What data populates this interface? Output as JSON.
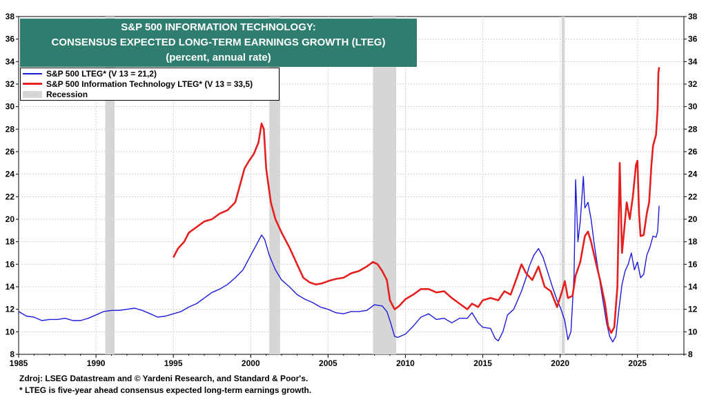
{
  "title": {
    "line1": "S&P 500 INFORMATION TECHNOLOGY:",
    "line2": "CONSENSUS EXPECTED LONG-TERM EARNINGS GROWTH (LTEG)",
    "line3": "(percent, annual rate)"
  },
  "legend": [
    {
      "label": "S&P 500 LTEG* (V 13 = 21,2)",
      "color": "#1a1adc"
    },
    {
      "label": "S&P 500 Information Technology LTEG* (V 13 = 33,5)",
      "color": "#e61e1e"
    },
    {
      "label": "Recession",
      "color": "#d6d6d6"
    }
  ],
  "footnotes": {
    "source": "Zdroj: LSEG Datastream and © Yardeni Research, and Standard & Poor's.",
    "note": "* LTEG is five-year ahead consensus expected long-term earnings growth."
  },
  "chart_data": {
    "type": "line",
    "xlim": [
      1985,
      2028
    ],
    "ylim": [
      8,
      38
    ],
    "x_ticks": [
      1985,
      1990,
      1995,
      2000,
      2005,
      2010,
      2015,
      2020,
      2025
    ],
    "y_ticks": [
      8,
      10,
      12,
      14,
      16,
      18,
      20,
      22,
      24,
      26,
      28,
      30,
      32,
      34,
      36,
      38
    ],
    "grid": true,
    "y_axis_both_sides": true,
    "recessions": [
      [
        1990.6,
        1991.2
      ],
      [
        2001.2,
        2001.9
      ],
      [
        2007.9,
        2009.4
      ],
      [
        2020.1,
        2020.3
      ]
    ],
    "series": [
      {
        "name": "S&P 500 LTEG* (V 13 = 21,2)",
        "color": "#1a1adc",
        "points": [
          [
            1985.0,
            11.8
          ],
          [
            1985.5,
            11.4
          ],
          [
            1986.0,
            11.3
          ],
          [
            1986.5,
            11.0
          ],
          [
            1987.0,
            11.1
          ],
          [
            1987.5,
            11.1
          ],
          [
            1988.0,
            11.2
          ],
          [
            1988.5,
            11.0
          ],
          [
            1989.0,
            11.0
          ],
          [
            1989.5,
            11.2
          ],
          [
            1990.0,
            11.5
          ],
          [
            1990.5,
            11.8
          ],
          [
            1991.0,
            11.9
          ],
          [
            1991.5,
            11.9
          ],
          [
            1992.0,
            12.0
          ],
          [
            1992.5,
            12.1
          ],
          [
            1993.0,
            11.9
          ],
          [
            1993.5,
            11.6
          ],
          [
            1994.0,
            11.3
          ],
          [
            1994.5,
            11.4
          ],
          [
            1995.0,
            11.6
          ],
          [
            1995.5,
            11.8
          ],
          [
            1996.0,
            12.2
          ],
          [
            1996.5,
            12.5
          ],
          [
            1997.0,
            13.0
          ],
          [
            1997.5,
            13.5
          ],
          [
            1998.0,
            13.8
          ],
          [
            1998.5,
            14.2
          ],
          [
            1999.0,
            14.8
          ],
          [
            1999.5,
            15.5
          ],
          [
            2000.0,
            16.8
          ],
          [
            2000.4,
            17.8
          ],
          [
            2000.7,
            18.6
          ],
          [
            2000.9,
            18.2
          ],
          [
            2001.2,
            16.8
          ],
          [
            2001.6,
            15.5
          ],
          [
            2002.0,
            14.6
          ],
          [
            2002.5,
            14.0
          ],
          [
            2003.0,
            13.3
          ],
          [
            2003.5,
            12.9
          ],
          [
            2004.0,
            12.6
          ],
          [
            2004.5,
            12.2
          ],
          [
            2005.0,
            12.0
          ],
          [
            2005.5,
            11.7
          ],
          [
            2006.0,
            11.6
          ],
          [
            2006.5,
            11.8
          ],
          [
            2007.0,
            11.8
          ],
          [
            2007.5,
            11.9
          ],
          [
            2008.0,
            12.4
          ],
          [
            2008.5,
            12.3
          ],
          [
            2008.8,
            11.8
          ],
          [
            2009.0,
            11.0
          ],
          [
            2009.3,
            9.6
          ],
          [
            2009.5,
            9.5
          ],
          [
            2010.0,
            9.8
          ],
          [
            2010.5,
            10.5
          ],
          [
            2011.0,
            11.3
          ],
          [
            2011.5,
            11.6
          ],
          [
            2012.0,
            11.1
          ],
          [
            2012.5,
            11.2
          ],
          [
            2013.0,
            10.8
          ],
          [
            2013.5,
            11.2
          ],
          [
            2014.0,
            11.2
          ],
          [
            2014.3,
            11.7
          ],
          [
            2014.7,
            10.8
          ],
          [
            2015.0,
            10.4
          ],
          [
            2015.5,
            10.3
          ],
          [
            2015.8,
            9.4
          ],
          [
            2016.0,
            9.2
          ],
          [
            2016.3,
            10.0
          ],
          [
            2016.6,
            11.5
          ],
          [
            2017.0,
            12.0
          ],
          [
            2017.5,
            13.6
          ],
          [
            2017.8,
            14.8
          ],
          [
            2018.0,
            15.8
          ],
          [
            2018.3,
            16.8
          ],
          [
            2018.6,
            17.4
          ],
          [
            2018.9,
            16.6
          ],
          [
            2019.2,
            15.3
          ],
          [
            2019.5,
            14.0
          ],
          [
            2019.8,
            12.8
          ],
          [
            2020.0,
            12.2
          ],
          [
            2020.3,
            11.0
          ],
          [
            2020.5,
            9.3
          ],
          [
            2020.7,
            10.0
          ],
          [
            2020.9,
            15.0
          ],
          [
            2021.0,
            23.5
          ],
          [
            2021.15,
            18.0
          ],
          [
            2021.3,
            19.8
          ],
          [
            2021.5,
            23.8
          ],
          [
            2021.6,
            21.0
          ],
          [
            2021.8,
            21.5
          ],
          [
            2022.0,
            20.0
          ],
          [
            2022.2,
            17.8
          ],
          [
            2022.4,
            16.0
          ],
          [
            2022.6,
            14.2
          ],
          [
            2022.8,
            12.5
          ],
          [
            2023.0,
            10.8
          ],
          [
            2023.2,
            9.6
          ],
          [
            2023.4,
            9.1
          ],
          [
            2023.6,
            9.6
          ],
          [
            2023.8,
            12.0
          ],
          [
            2024.0,
            14.2
          ],
          [
            2024.2,
            15.4
          ],
          [
            2024.4,
            16.0
          ],
          [
            2024.6,
            17.0
          ],
          [
            2024.8,
            15.5
          ],
          [
            2025.0,
            16.2
          ],
          [
            2025.2,
            14.8
          ],
          [
            2025.4,
            15.1
          ],
          [
            2025.6,
            16.8
          ],
          [
            2025.8,
            17.5
          ],
          [
            2026.0,
            18.5
          ],
          [
            2026.2,
            18.4
          ],
          [
            2026.3,
            18.9
          ],
          [
            2026.4,
            21.2
          ]
        ]
      },
      {
        "name": "S&P 500 Information Technology LTEG* (V 13 = 33,5)",
        "color": "#e61e1e",
        "points": [
          [
            1995.0,
            16.6
          ],
          [
            1995.3,
            17.4
          ],
          [
            1995.7,
            18.0
          ],
          [
            1996.0,
            18.8
          ],
          [
            1996.5,
            19.3
          ],
          [
            1997.0,
            19.8
          ],
          [
            1997.5,
            20.0
          ],
          [
            1998.0,
            20.5
          ],
          [
            1998.5,
            20.8
          ],
          [
            1999.0,
            21.5
          ],
          [
            1999.3,
            23.0
          ],
          [
            1999.6,
            24.5
          ],
          [
            1999.9,
            25.2
          ],
          [
            2000.2,
            25.8
          ],
          [
            2000.5,
            26.8
          ],
          [
            2000.7,
            28.5
          ],
          [
            2000.85,
            28.0
          ],
          [
            2001.0,
            24.5
          ],
          [
            2001.3,
            21.5
          ],
          [
            2001.6,
            20.0
          ],
          [
            2002.0,
            18.8
          ],
          [
            2002.5,
            17.5
          ],
          [
            2003.0,
            16.0
          ],
          [
            2003.4,
            14.8
          ],
          [
            2003.8,
            14.4
          ],
          [
            2004.2,
            14.2
          ],
          [
            2004.6,
            14.3
          ],
          [
            2005.0,
            14.5
          ],
          [
            2005.5,
            14.7
          ],
          [
            2006.0,
            14.8
          ],
          [
            2006.5,
            15.2
          ],
          [
            2007.0,
            15.4
          ],
          [
            2007.5,
            15.8
          ],
          [
            2007.9,
            16.2
          ],
          [
            2008.2,
            16.0
          ],
          [
            2008.5,
            15.4
          ],
          [
            2008.8,
            14.6
          ],
          [
            2009.0,
            12.8
          ],
          [
            2009.3,
            12.0
          ],
          [
            2009.6,
            12.3
          ],
          [
            2010.0,
            12.9
          ],
          [
            2010.5,
            13.3
          ],
          [
            2011.0,
            13.8
          ],
          [
            2011.5,
            13.8
          ],
          [
            2012.0,
            13.5
          ],
          [
            2012.5,
            13.6
          ],
          [
            2013.0,
            13.0
          ],
          [
            2013.5,
            12.5
          ],
          [
            2014.0,
            12.0
          ],
          [
            2014.3,
            12.5
          ],
          [
            2014.7,
            12.2
          ],
          [
            2015.0,
            12.8
          ],
          [
            2015.5,
            13.0
          ],
          [
            2016.0,
            12.8
          ],
          [
            2016.4,
            13.6
          ],
          [
            2016.8,
            13.3
          ],
          [
            2017.2,
            14.8
          ],
          [
            2017.5,
            16.0
          ],
          [
            2017.8,
            15.2
          ],
          [
            2018.2,
            14.6
          ],
          [
            2018.6,
            15.8
          ],
          [
            2019.0,
            14.0
          ],
          [
            2019.4,
            13.6
          ],
          [
            2019.8,
            12.2
          ],
          [
            2020.1,
            13.5
          ],
          [
            2020.3,
            14.5
          ],
          [
            2020.5,
            13.0
          ],
          [
            2020.8,
            13.2
          ],
          [
            2021.0,
            15.0
          ],
          [
            2021.3,
            16.2
          ],
          [
            2021.6,
            18.5
          ],
          [
            2021.8,
            18.9
          ],
          [
            2022.0,
            18.0
          ],
          [
            2022.3,
            16.2
          ],
          [
            2022.6,
            14.5
          ],
          [
            2022.9,
            12.5
          ],
          [
            2023.1,
            10.5
          ],
          [
            2023.3,
            9.9
          ],
          [
            2023.5,
            10.4
          ],
          [
            2023.7,
            14.0
          ],
          [
            2023.85,
            25.0
          ],
          [
            2024.0,
            17.0
          ],
          [
            2024.1,
            18.5
          ],
          [
            2024.3,
            21.5
          ],
          [
            2024.5,
            20.0
          ],
          [
            2024.7,
            22.0
          ],
          [
            2024.9,
            24.8
          ],
          [
            2025.0,
            25.2
          ],
          [
            2025.1,
            20.5
          ],
          [
            2025.2,
            18.5
          ],
          [
            2025.4,
            18.6
          ],
          [
            2025.6,
            20.5
          ],
          [
            2025.75,
            21.5
          ],
          [
            2025.9,
            24.8
          ],
          [
            2026.0,
            26.5
          ],
          [
            2026.2,
            27.5
          ],
          [
            2026.3,
            29.8
          ],
          [
            2026.35,
            33.0
          ],
          [
            2026.4,
            33.5
          ]
        ]
      }
    ]
  }
}
